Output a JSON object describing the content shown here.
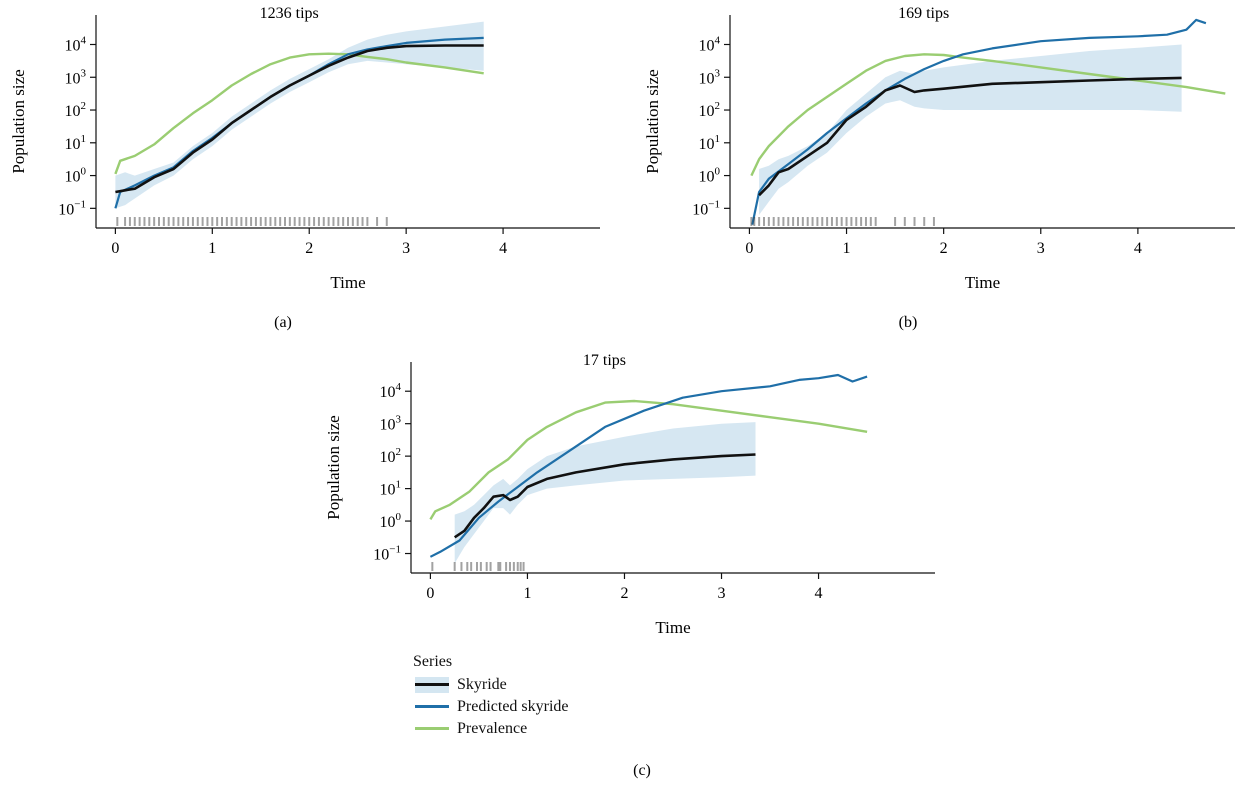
{
  "figure": {
    "legend": {
      "title": "Series",
      "items": [
        {
          "label": "Skyride",
          "color": "#111111",
          "band": true
        },
        {
          "label": "Predicted skyride",
          "color": "#1f6fa8",
          "band": false
        },
        {
          "label": "Prevalence",
          "color": "#9acd72",
          "band": false
        }
      ]
    },
    "colors": {
      "skyride": "#111111",
      "predicted": "#1f6fa8",
      "prevalence": "#9acd72",
      "band": "#d4e6f1",
      "tips": "#333333"
    }
  },
  "chart_data": [
    {
      "type": "line",
      "panel_label": "(a)",
      "title": "1236 tips",
      "xlabel": "Time",
      "ylabel": "Population size",
      "xlim": [
        -0.2,
        5.0
      ],
      "ylim": [
        -1.6,
        4.9
      ],
      "yscale": "log",
      "xticks": [
        0,
        1,
        2,
        3,
        4
      ],
      "yticks": [
        {
          "exp": -1,
          "label": "10",
          "sup": "−1"
        },
        {
          "exp": 0,
          "label": "10",
          "sup": "0"
        },
        {
          "exp": 1,
          "label": "10",
          "sup": "1"
        },
        {
          "exp": 2,
          "label": "10",
          "sup": "2"
        },
        {
          "exp": 3,
          "label": "10",
          "sup": "3"
        },
        {
          "exp": 4,
          "label": "10",
          "sup": "4"
        }
      ],
      "series": [
        {
          "name": "Skyride",
          "x": [
            0,
            0.1,
            0.2,
            0.4,
            0.6,
            0.8,
            1.0,
            1.2,
            1.4,
            1.6,
            1.8,
            2.0,
            2.2,
            2.4,
            2.6,
            2.8,
            3.0,
            3.4,
            3.8
          ],
          "log10": [
            -0.5,
            -0.45,
            -0.4,
            -0.05,
            0.2,
            0.7,
            1.1,
            1.6,
            2.0,
            2.4,
            2.75,
            3.05,
            3.35,
            3.6,
            3.8,
            3.9,
            3.95,
            3.97,
            3.97
          ],
          "band_low": [
            -1.0,
            -0.9,
            -0.7,
            -0.3,
            0.0,
            0.5,
            0.9,
            1.4,
            1.8,
            2.2,
            2.55,
            2.85,
            3.15,
            3.4,
            3.5,
            3.45,
            3.4,
            3.3,
            3.2
          ],
          "band_high": [
            0.0,
            0.1,
            0.0,
            0.2,
            0.4,
            0.9,
            1.3,
            1.8,
            2.2,
            2.6,
            2.95,
            3.25,
            3.55,
            3.9,
            4.15,
            4.3,
            4.4,
            4.55,
            4.7
          ]
        },
        {
          "name": "Predicted skyride",
          "x": [
            0,
            0.05,
            0.2,
            0.4,
            0.6,
            0.8,
            1.0,
            1.2,
            1.4,
            1.6,
            1.8,
            2.0,
            2.2,
            2.4,
            2.6,
            2.8,
            3.0,
            3.4,
            3.8
          ],
          "log10": [
            -1.0,
            -0.5,
            -0.3,
            0.0,
            0.25,
            0.75,
            1.15,
            1.6,
            2.0,
            2.4,
            2.75,
            3.05,
            3.4,
            3.7,
            3.85,
            3.95,
            4.05,
            4.15,
            4.2
          ]
        },
        {
          "name": "Prevalence",
          "x": [
            0,
            0.05,
            0.2,
            0.4,
            0.6,
            0.8,
            1.0,
            1.2,
            1.4,
            1.6,
            1.8,
            2.0,
            2.2,
            2.4,
            2.6,
            2.8,
            3.0,
            3.4,
            3.8
          ],
          "log10": [
            0.05,
            0.45,
            0.6,
            0.95,
            1.45,
            1.9,
            2.3,
            2.75,
            3.1,
            3.4,
            3.6,
            3.7,
            3.72,
            3.7,
            3.62,
            3.55,
            3.45,
            3.3,
            3.12
          ]
        }
      ],
      "tips": {
        "x": [
          0.02,
          0.1,
          0.15,
          0.2,
          0.25,
          0.3,
          0.35,
          0.4,
          0.45,
          0.5,
          0.55,
          0.6,
          0.65,
          0.7,
          0.75,
          0.8,
          0.85,
          0.9,
          0.95,
          1.0,
          1.05,
          1.1,
          1.15,
          1.2,
          1.25,
          1.3,
          1.35,
          1.4,
          1.45,
          1.5,
          1.55,
          1.6,
          1.65,
          1.7,
          1.75,
          1.8,
          1.85,
          1.9,
          1.95,
          2.0,
          2.05,
          2.1,
          2.15,
          2.2,
          2.25,
          2.3,
          2.35,
          2.4,
          2.45,
          2.5,
          2.55,
          2.6,
          2.7,
          2.8
        ]
      }
    },
    {
      "type": "line",
      "panel_label": "(b)",
      "title": "169 tips",
      "xlabel": "Time",
      "ylabel": "Population size",
      "xlim": [
        -0.2,
        5.0
      ],
      "ylim": [
        -1.6,
        4.9
      ],
      "yscale": "log",
      "xticks": [
        0,
        1,
        2,
        3,
        4
      ],
      "yticks": [
        {
          "exp": -1,
          "label": "10",
          "sup": "−1"
        },
        {
          "exp": 0,
          "label": "10",
          "sup": "0"
        },
        {
          "exp": 1,
          "label": "10",
          "sup": "1"
        },
        {
          "exp": 2,
          "label": "10",
          "sup": "2"
        },
        {
          "exp": 3,
          "label": "10",
          "sup": "3"
        },
        {
          "exp": 4,
          "label": "10",
          "sup": "4"
        }
      ],
      "series": [
        {
          "name": "Skyride",
          "x": [
            0.1,
            0.2,
            0.3,
            0.4,
            0.6,
            0.8,
            1.0,
            1.2,
            1.4,
            1.55,
            1.7,
            1.8,
            2.0,
            2.5,
            3.0,
            3.5,
            4.0,
            4.45
          ],
          "log10": [
            -0.6,
            -0.3,
            0.1,
            0.2,
            0.6,
            1.0,
            1.7,
            2.1,
            2.6,
            2.75,
            2.55,
            2.6,
            2.65,
            2.8,
            2.85,
            2.9,
            2.95,
            2.98
          ],
          "band_low": [
            -1.2,
            -0.8,
            -0.4,
            -0.2,
            0.3,
            0.7,
            1.3,
            1.8,
            2.2,
            2.3,
            2.1,
            2.05,
            2.0,
            2.0,
            2.0,
            2.0,
            2.0,
            1.95
          ],
          "band_high": [
            0.2,
            0.3,
            0.5,
            0.6,
            0.9,
            1.3,
            2.0,
            2.5,
            3.0,
            3.2,
            3.1,
            3.2,
            3.3,
            3.5,
            3.65,
            3.8,
            3.9,
            4.0
          ]
        },
        {
          "name": "Predicted skyride",
          "x": [
            0.03,
            0.1,
            0.2,
            0.4,
            0.6,
            0.8,
            1.0,
            1.2,
            1.4,
            1.6,
            1.8,
            2.0,
            2.2,
            2.5,
            3.0,
            3.5,
            4.0,
            4.3,
            4.5,
            4.6,
            4.7
          ],
          "log10": [
            -1.5,
            -0.5,
            -0.1,
            0.35,
            0.8,
            1.3,
            1.75,
            2.2,
            2.6,
            2.95,
            3.25,
            3.5,
            3.7,
            3.88,
            4.1,
            4.2,
            4.25,
            4.3,
            4.45,
            4.75,
            4.65
          ]
        },
        {
          "name": "Prevalence",
          "x": [
            0.02,
            0.1,
            0.2,
            0.4,
            0.6,
            0.8,
            1.0,
            1.2,
            1.4,
            1.6,
            1.8,
            2.0,
            2.2,
            2.5,
            3.0,
            3.5,
            4.0,
            4.5,
            4.9
          ],
          "log10": [
            0.0,
            0.5,
            0.9,
            1.5,
            2.0,
            2.4,
            2.8,
            3.2,
            3.5,
            3.65,
            3.7,
            3.68,
            3.6,
            3.5,
            3.3,
            3.1,
            2.9,
            2.7,
            2.5
          ]
        }
      ],
      "tips": {
        "x": [
          0.02,
          0.05,
          0.1,
          0.15,
          0.2,
          0.25,
          0.3,
          0.35,
          0.4,
          0.45,
          0.5,
          0.55,
          0.6,
          0.65,
          0.7,
          0.75,
          0.8,
          0.85,
          0.9,
          0.95,
          1.0,
          1.05,
          1.1,
          1.15,
          1.2,
          1.25,
          1.3,
          1.5,
          1.6,
          1.7,
          1.8,
          1.9
        ]
      }
    },
    {
      "type": "line",
      "panel_label": "(c)",
      "title": "17 tips",
      "xlabel": "Time",
      "ylabel": "Population size",
      "xlim": [
        -0.2,
        5.2
      ],
      "ylim": [
        -1.6,
        4.9
      ],
      "yscale": "log",
      "xticks": [
        0,
        1,
        2,
        3,
        4
      ],
      "yticks": [
        {
          "exp": -1,
          "label": "10",
          "sup": "−1"
        },
        {
          "exp": 0,
          "label": "10",
          "sup": "0"
        },
        {
          "exp": 1,
          "label": "10",
          "sup": "1"
        },
        {
          "exp": 2,
          "label": "10",
          "sup": "2"
        },
        {
          "exp": 3,
          "label": "10",
          "sup": "3"
        },
        {
          "exp": 4,
          "label": "10",
          "sup": "4"
        }
      ],
      "series": [
        {
          "name": "Skyride",
          "x": [
            0.25,
            0.35,
            0.45,
            0.55,
            0.65,
            0.75,
            0.82,
            0.9,
            1.0,
            1.2,
            1.5,
            2.0,
            2.5,
            3.0,
            3.35
          ],
          "log10": [
            -0.5,
            -0.3,
            0.1,
            0.4,
            0.75,
            0.8,
            0.65,
            0.75,
            1.05,
            1.3,
            1.5,
            1.75,
            1.9,
            2.0,
            2.05
          ],
          "band_low": [
            -1.3,
            -0.8,
            -0.4,
            0.0,
            0.4,
            0.4,
            0.2,
            0.5,
            0.8,
            1.0,
            1.1,
            1.25,
            1.3,
            1.35,
            1.4
          ],
          "band_high": [
            0.2,
            0.3,
            0.5,
            0.8,
            1.1,
            1.3,
            1.1,
            1.3,
            1.6,
            2.0,
            2.3,
            2.6,
            2.85,
            3.0,
            3.05
          ]
        },
        {
          "name": "Predicted skyride",
          "x": [
            0,
            0.1,
            0.3,
            0.5,
            0.7,
            0.9,
            1.1,
            1.4,
            1.8,
            2.2,
            2.6,
            3.0,
            3.5,
            3.8,
            4.0,
            4.2,
            4.35,
            4.5
          ],
          "log10": [
            -1.1,
            -0.95,
            -0.6,
            0.1,
            0.6,
            1.05,
            1.5,
            2.1,
            2.9,
            3.4,
            3.8,
            4.0,
            4.15,
            4.35,
            4.4,
            4.5,
            4.3,
            4.45
          ]
        },
        {
          "name": "Prevalence",
          "x": [
            0,
            0.05,
            0.2,
            0.4,
            0.6,
            0.8,
            1.0,
            1.2,
            1.5,
            1.8,
            2.1,
            2.5,
            3.0,
            3.5,
            4.0,
            4.5
          ],
          "log10": [
            0.05,
            0.3,
            0.5,
            0.9,
            1.5,
            1.9,
            2.5,
            2.9,
            3.35,
            3.65,
            3.7,
            3.6,
            3.4,
            3.2,
            3.0,
            2.75
          ]
        }
      ],
      "tips": {
        "x": [
          0.02,
          0.25,
          0.32,
          0.38,
          0.42,
          0.48,
          0.52,
          0.58,
          0.62,
          0.7,
          0.72,
          0.78,
          0.82,
          0.86,
          0.9,
          0.93,
          0.96
        ]
      }
    }
  ]
}
